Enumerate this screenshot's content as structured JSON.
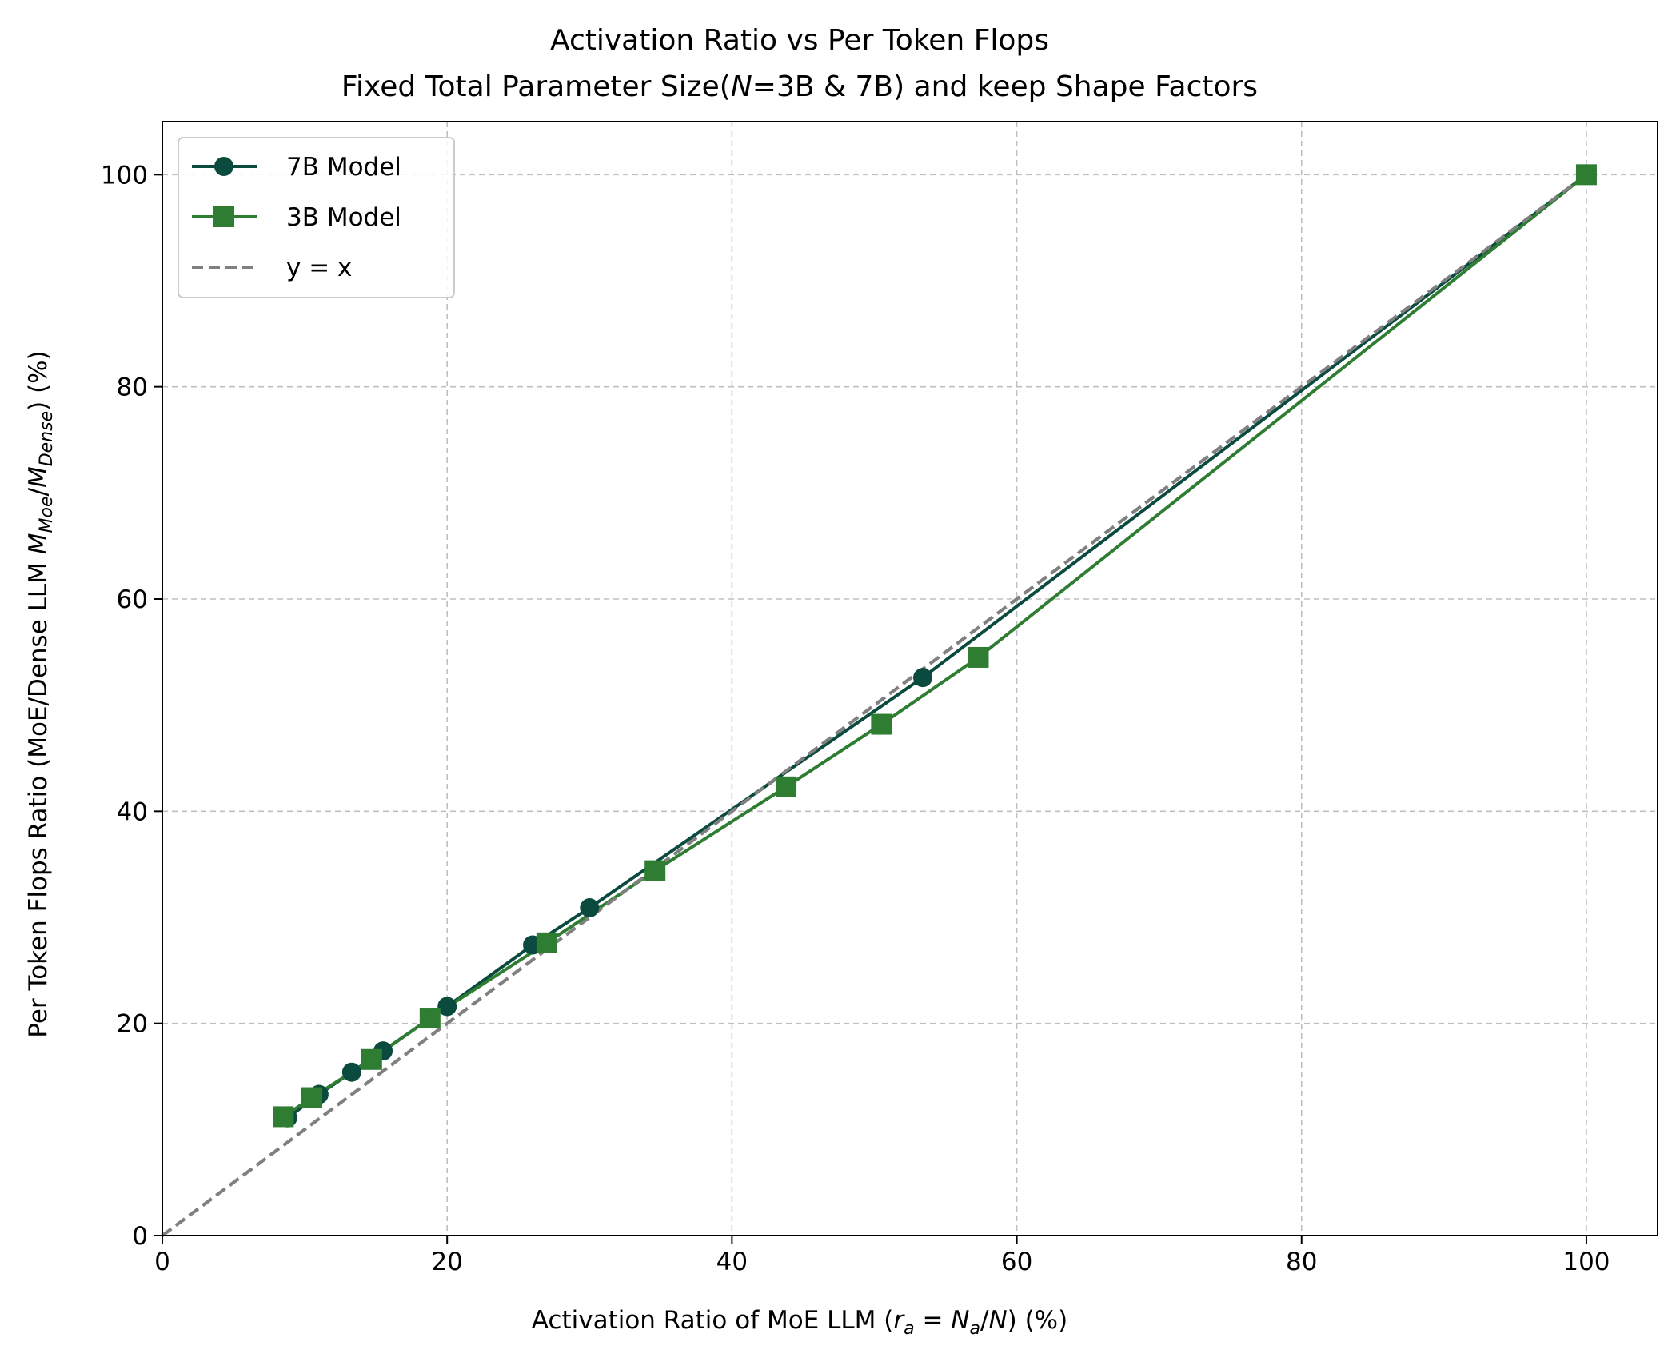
{
  "chart_data": {
    "type": "line",
    "title_line1": "Activation Ratio vs Per Token Flops",
    "title_line2_pre": "Fixed Total Parameter Size(",
    "title_line2_var": "N",
    "title_line2_post": "=3B & 7B) and keep Shape Factors",
    "xlabel_pre": "Activation Ratio of MoE LLM (",
    "xlabel_math": "r",
    "xlabel_math_sub": "a",
    "xlabel_eq": " = ",
    "xlabel_math2": "N",
    "xlabel_math2_sub": "a",
    "xlabel_slash": "/",
    "xlabel_math3": "N",
    "xlabel_post": ") (%)",
    "ylabel_pre": "Per Token Flops Ratio (MoE/Dense LLM ",
    "ylabel_m1": "M",
    "ylabel_m1_sub": "Moe",
    "ylabel_slash": "/",
    "ylabel_m2": "M",
    "ylabel_m2_sub": "Dense",
    "ylabel_post": ") (%)",
    "xlim": [
      0,
      105
    ],
    "ylim": [
      0,
      105
    ],
    "xticks": [
      0,
      20,
      40,
      60,
      80,
      100
    ],
    "yticks": [
      0,
      20,
      40,
      60,
      80,
      100
    ],
    "grid": true,
    "legend_position": "upper-left",
    "series": [
      {
        "name": "7B Model",
        "color": "#0b4a3f",
        "marker": "circle",
        "x": [
          8.8,
          11.0,
          13.3,
          15.5,
          20.0,
          26.0,
          30.0,
          53.4,
          100
        ],
        "y": [
          11.1,
          13.3,
          15.4,
          17.4,
          21.6,
          27.4,
          30.9,
          52.6,
          100
        ]
      },
      {
        "name": "3B Model",
        "color": "#2e7d32",
        "marker": "square",
        "x": [
          8.5,
          10.5,
          14.7,
          18.8,
          27.0,
          34.6,
          43.8,
          50.5,
          57.3,
          100
        ],
        "y": [
          11.2,
          13.0,
          16.6,
          20.5,
          27.6,
          34.4,
          42.3,
          48.2,
          54.5,
          100
        ]
      },
      {
        "name": "y = x",
        "color": "#808080",
        "marker": "none",
        "dashed": true,
        "x": [
          0,
          100
        ],
        "y": [
          0,
          100
        ]
      }
    ]
  }
}
